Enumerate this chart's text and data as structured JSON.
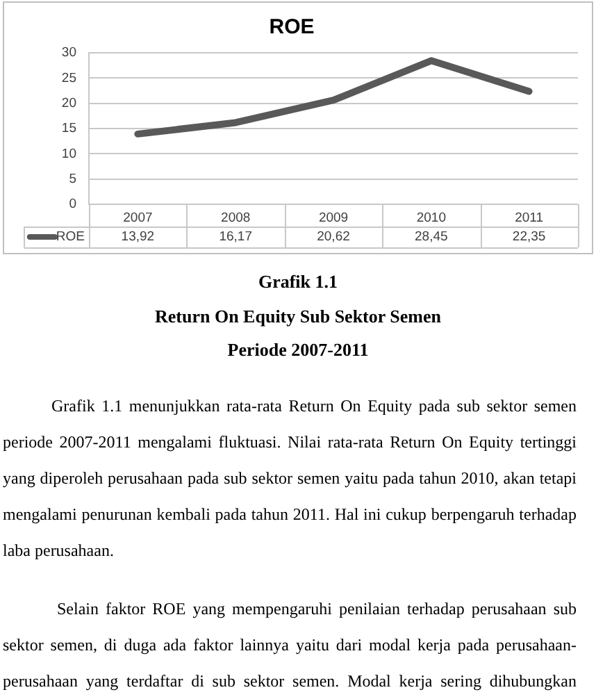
{
  "chart_data": {
    "type": "line",
    "title": "ROE",
    "categories": [
      "2007",
      "2008",
      "2009",
      "2010",
      "2011"
    ],
    "series": [
      {
        "name": "ROE",
        "color": "#595959",
        "values": [
          13.92,
          16.17,
          20.62,
          28.45,
          22.35
        ],
        "value_labels": [
          "13,92",
          "16,17",
          "20,62",
          "28,45",
          "22,35"
        ]
      }
    ],
    "ylim": [
      0,
      30
    ],
    "yticks": [
      0,
      5,
      10,
      15,
      20,
      25,
      30
    ],
    "grid": "y",
    "legend": "bottom",
    "annotations": [
      "Grafik 1.1",
      "Return On Equity Sub Sektor Semen",
      "Periode 2007-2011",
      "Grafik 1.1 menunjukkan rata-rata Return On Equity pada sub sektor semen periode 2007-2011 mengalami fluktuasi. Nilai rata-rata Return On Equity tertinggi yang diperoleh perusahaan pada sub sektor semen yaitu pada tahun 2010, akan tetapi mengalami penurunan kembali pada tahun 2011. Hal ini cukup berpengaruh terhadap laba perusahaan.",
      "Selain faktor ROE yang mempengaruhi penilaian terhadap perusahaan sub sektor semen, di duga ada faktor lainnya yaitu dari modal kerja pada perusahaan-perusahaan yang terdaftar di sub sektor semen. Modal kerja sering dihubungkan"
    ]
  }
}
